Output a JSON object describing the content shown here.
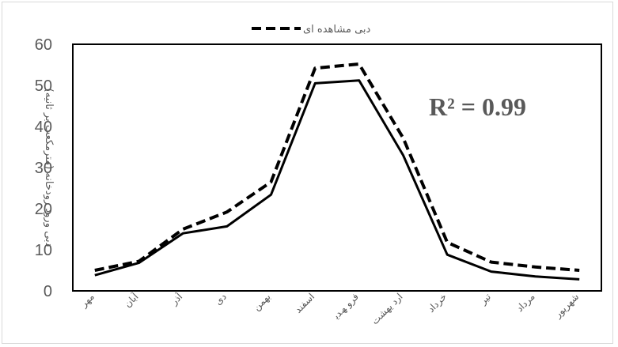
{
  "chart_data": {
    "type": "line",
    "categories": [
      "مهر",
      "آبان",
      "آذر",
      "دی",
      "بهمن",
      "اسفند",
      "فرو ﮫﺪﯾ",
      "ارد ﯾﮭﺸﺖ",
      "خرداد",
      "تیر",
      "مرداد",
      "شهریور"
    ],
    "series": [
      {
        "name": "دبی مشاهده ای",
        "style": "dashed",
        "color": "#000000",
        "values": [
          5.0,
          7.2,
          15.0,
          19.2,
          26.5,
          54.2,
          55.2,
          37.2,
          11.8,
          7.0,
          5.8,
          5.0
        ]
      },
      {
        "name": "",
        "style": "solid",
        "color": "#000000",
        "values": [
          3.8,
          6.8,
          14.0,
          15.7,
          23.4,
          50.5,
          51.2,
          33.0,
          8.8,
          4.7,
          3.5,
          2.8
        ]
      }
    ],
    "yticks": [
      "0",
      "10",
      "20",
      "30",
      "40",
      "50",
      "60"
    ],
    "ylim": [
      0,
      60
    ],
    "ylabel": "دبی ورود رودخانه (مترمکعب بر ثانیه)",
    "xlabel": "",
    "legend_position": "top",
    "annotation": "R² = 0.99",
    "grid": false
  }
}
